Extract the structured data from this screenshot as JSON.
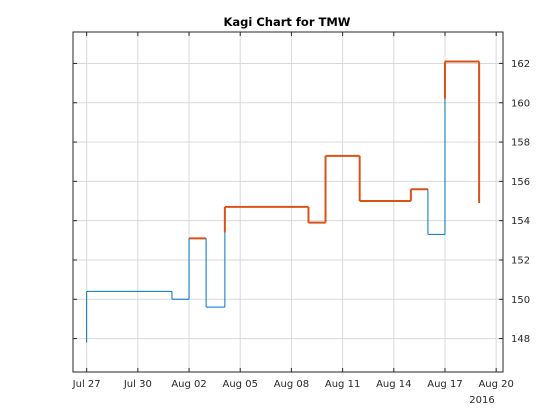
{
  "chart_data": {
    "type": "kagi",
    "title": "Kagi Chart for TMW",
    "xlabel": "",
    "ylabel": "",
    "x_axis": {
      "tick_labels": [
        "Jul 27",
        "Jul 30",
        "Aug 02",
        "Aug 05",
        "Aug 08",
        "Aug 11",
        "Aug 14",
        "Aug 17",
        "Aug 20"
      ],
      "year_label": "2016",
      "range_days": [
        -0.8,
        24.4
      ]
    },
    "y_axis": {
      "ticks": [
        148,
        150,
        152,
        154,
        156,
        158,
        160,
        162
      ],
      "ylim": [
        146.3,
        163.6
      ],
      "position": "right"
    },
    "grid": true,
    "colors": {
      "up": "#d95319",
      "down": "#0072bd"
    },
    "segments": [
      {
        "x": 0,
        "y0": 147.8,
        "y1": 150.4,
        "dir": "down"
      },
      {
        "x": 5.0,
        "y0": 150.4,
        "y1": 150.0,
        "dir": "down"
      },
      {
        "x": 6.0,
        "y0": 150.0,
        "y1": 153.1,
        "dir": "down"
      },
      {
        "x": 7.0,
        "y0": 153.1,
        "y1": 149.6,
        "dir": "down"
      },
      {
        "x": 8.1,
        "y0": 149.6,
        "y1": 153.4,
        "dir": "down"
      },
      {
        "x": 8.1,
        "y0": 153.4,
        "y1": 154.7,
        "dir": "up"
      },
      {
        "x": 13.0,
        "y0": 154.7,
        "y1": 153.9,
        "dir": "up"
      },
      {
        "x": 14.0,
        "y0": 153.9,
        "y1": 157.3,
        "dir": "up"
      },
      {
        "x": 16.0,
        "y0": 157.3,
        "y1": 155.0,
        "dir": "up"
      },
      {
        "x": 19.0,
        "y0": 155.0,
        "y1": 155.6,
        "dir": "up"
      },
      {
        "x": 20.0,
        "y0": 155.6,
        "y1": 153.3,
        "dir": "down"
      },
      {
        "x": 21.0,
        "y0": 153.3,
        "y1": 160.2,
        "dir": "down"
      },
      {
        "x": 21.0,
        "y0": 160.2,
        "y1": 162.1,
        "dir": "up"
      },
      {
        "x": 23.0,
        "y0": 162.1,
        "y1": 154.9,
        "dir": "up"
      }
    ],
    "connectors": [
      {
        "x0": 0,
        "x1": 5.0,
        "y": 150.4,
        "dir": "down"
      },
      {
        "x0": 5.0,
        "x1": 6.0,
        "y": 150.0,
        "dir": "down"
      },
      {
        "x0": 6.0,
        "x1": 7.0,
        "y": 153.1,
        "dir": "up"
      },
      {
        "x0": 7.0,
        "x1": 8.1,
        "y": 149.6,
        "dir": "down"
      },
      {
        "x0": 8.1,
        "x1": 13.0,
        "y": 154.7,
        "dir": "up"
      },
      {
        "x0": 13.0,
        "x1": 14.0,
        "y": 153.9,
        "dir": "up"
      },
      {
        "x0": 14.0,
        "x1": 16.0,
        "y": 157.3,
        "dir": "up"
      },
      {
        "x0": 16.0,
        "x1": 19.0,
        "y": 155.0,
        "dir": "up"
      },
      {
        "x0": 19.0,
        "x1": 20.0,
        "y": 155.6,
        "dir": "up"
      },
      {
        "x0": 20.0,
        "x1": 21.0,
        "y": 153.3,
        "dir": "down"
      },
      {
        "x0": 21.0,
        "x1": 23.0,
        "y": 162.1,
        "dir": "up"
      }
    ]
  }
}
